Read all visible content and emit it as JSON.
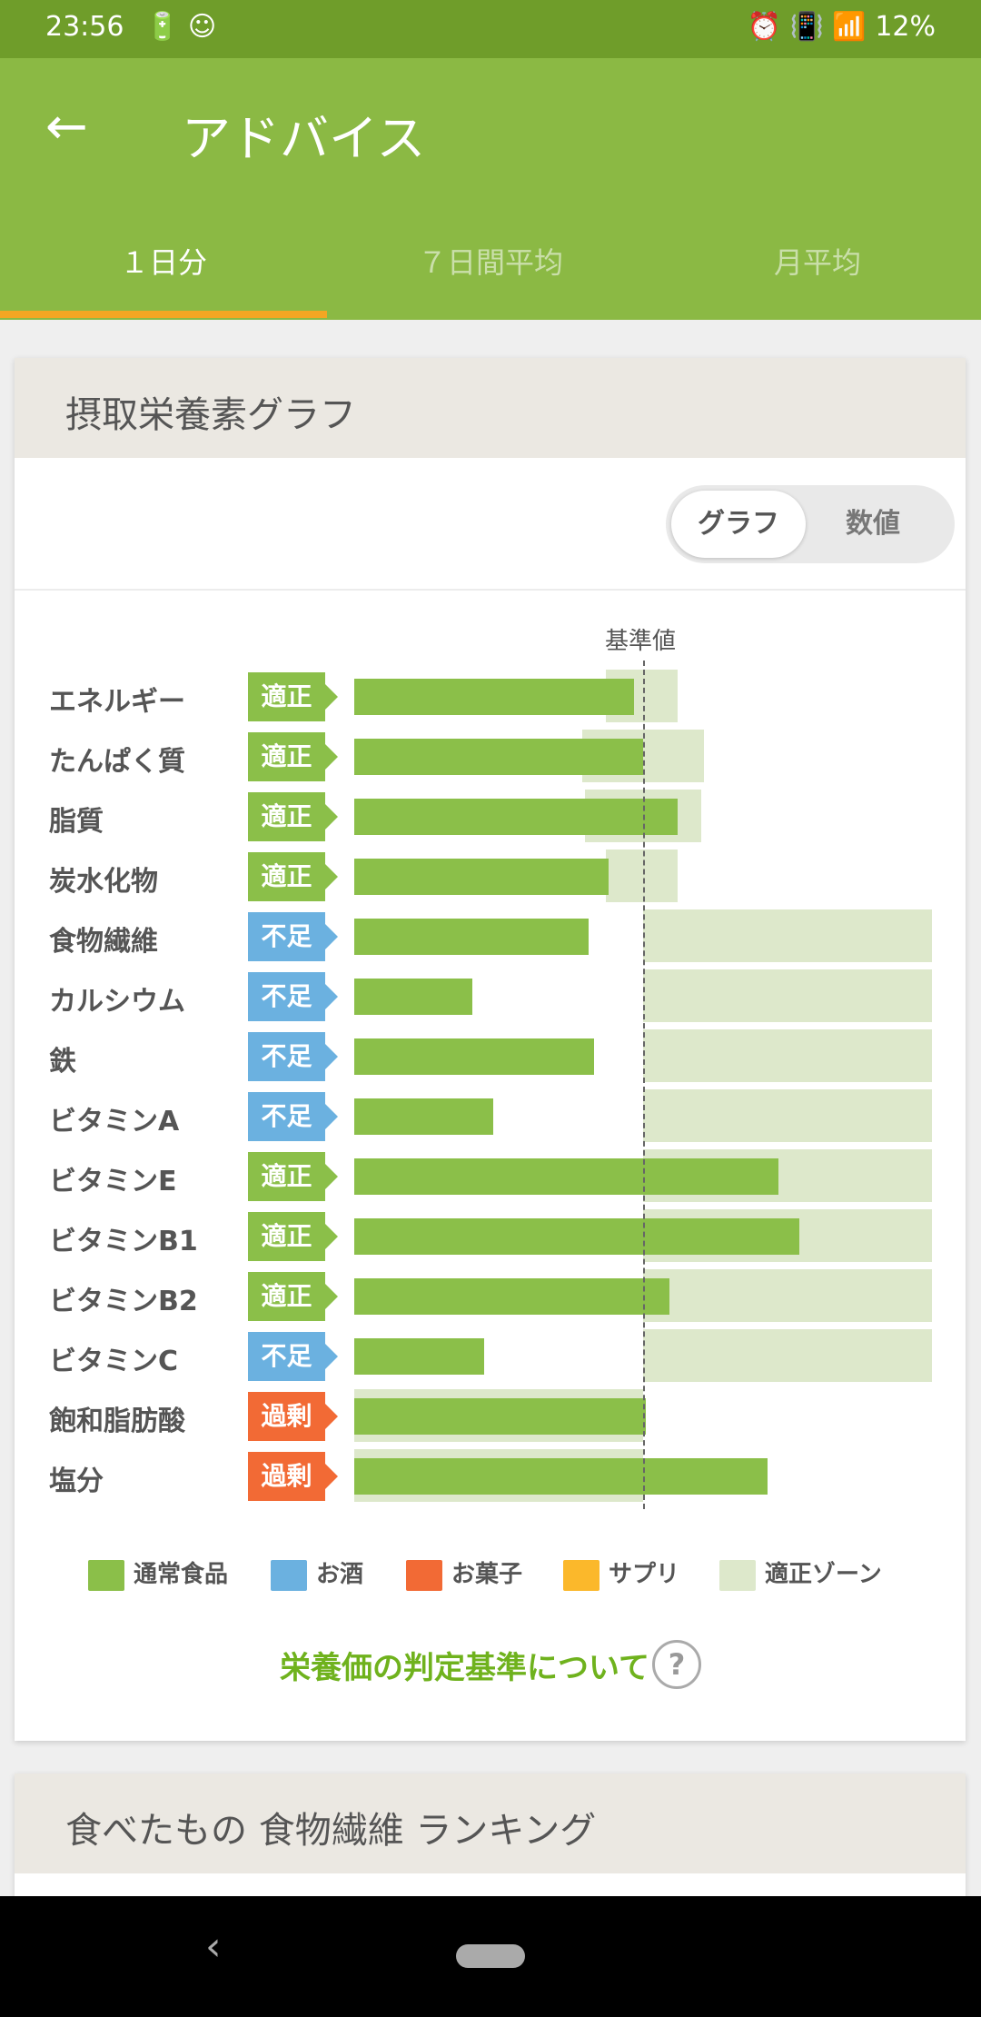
{
  "status": {
    "time": "23:56",
    "left_icons": "🔋 ☺",
    "right_icons": "⏰ 📳 📶",
    "battery": "12%"
  },
  "header": {
    "title": "アドバイス",
    "back_icon": "arrow-left-icon"
  },
  "tabs": [
    {
      "label": "１日分",
      "active": true
    },
    {
      "label": "７日間平均",
      "active": false
    },
    {
      "label": "月平均",
      "active": false
    }
  ],
  "nutrition_card": {
    "title": "摂取栄養素グラフ",
    "toggle": {
      "selected": "グラフ",
      "other": "数値"
    },
    "reference_label": "基準値"
  },
  "chart_data": {
    "type": "bar",
    "categories": [
      "エネルギー",
      "たんぱく質",
      "脂質",
      "炭水化物",
      "食物繊維",
      "カルシウム",
      "鉄",
      "ビタミンA",
      "ビタミンE",
      "ビタミンB1",
      "ビタミンB2",
      "ビタミンC",
      "飽和脂肪酸",
      "塩分"
    ],
    "status": [
      "適正",
      "適正",
      "適正",
      "適正",
      "不足",
      "不足",
      "不足",
      "不足",
      "適正",
      "適正",
      "適正",
      "不足",
      "過剰",
      "過剰"
    ],
    "values": [
      97,
      100,
      112,
      88,
      81,
      41,
      83,
      48,
      147,
      154,
      109,
      45,
      101,
      143
    ],
    "zone_start": [
      87,
      79,
      80,
      87,
      100,
      100,
      100,
      100,
      100,
      100,
      100,
      100,
      0,
      0
    ],
    "zone_end": [
      112,
      121,
      120,
      112,
      200,
      200,
      200,
      200,
      200,
      200,
      200,
      200,
      100,
      100
    ],
    "reference": 100,
    "xlim": [
      0,
      200
    ]
  },
  "badge_colors": {
    "適正": "#8bbf49",
    "不足": "#6bb1e0",
    "過剰": "#f26a35"
  },
  "legend": [
    {
      "label": "通常食品",
      "color": "#8bbf49"
    },
    {
      "label": "お酒",
      "color": "#6bb1e0"
    },
    {
      "label": "お菓子",
      "color": "#f26a35"
    },
    {
      "label": "サプリ",
      "color": "#fbb82b"
    },
    {
      "label": "適正ゾーン",
      "color": "#dde8cb"
    }
  ],
  "criteria_link": "栄養価の判定基準について",
  "ranking_card": {
    "title": "食べたもの 食物繊維 ランキング"
  }
}
